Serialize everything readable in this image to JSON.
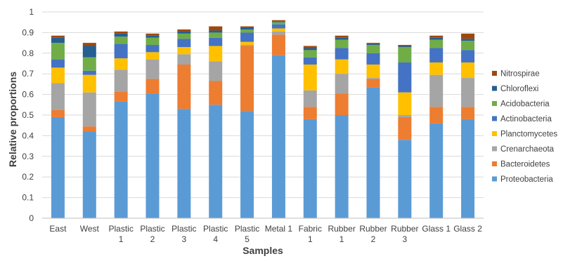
{
  "chart_data": {
    "type": "bar",
    "stacked": true,
    "xlabel": "Samples",
    "ylabel": "Relative proportions",
    "ylim": [
      0,
      1
    ],
    "yticks": [
      "0",
      "0.1",
      "0.2",
      "0.3",
      "0.4",
      "0.5",
      "0.6",
      "0.7",
      "0.8",
      "0.9",
      "1"
    ],
    "grid": true,
    "legend_position": "right",
    "categories": [
      [
        "East"
      ],
      [
        "West"
      ],
      [
        "Plastic",
        "1"
      ],
      [
        "Plastic",
        "2"
      ],
      [
        "Plastic",
        "3"
      ],
      [
        "Plastic",
        "4"
      ],
      [
        "Plastic",
        "5"
      ],
      [
        "Metal 1"
      ],
      [
        "Fabric",
        "1"
      ],
      [
        "Rubber",
        "1"
      ],
      [
        "Rubber",
        "2"
      ],
      [
        "Rubber",
        "3"
      ],
      [
        "Glass 1"
      ],
      [
        "Glass 2"
      ]
    ],
    "series": [
      {
        "name": "Proteobacteria",
        "color": "#5B9BD5",
        "values": [
          0.49,
          0.42,
          0.565,
          0.605,
          0.53,
          0.55,
          0.52,
          0.79,
          0.48,
          0.5,
          0.635,
          0.38,
          0.46,
          0.48
        ]
      },
      {
        "name": "Bacteroidetes",
        "color": "#ED7D31",
        "values": [
          0.035,
          0.025,
          0.05,
          0.07,
          0.215,
          0.115,
          0.315,
          0.1,
          0.06,
          0.105,
          0.04,
          0.11,
          0.08,
          0.06
        ]
      },
      {
        "name": "Crenarchaeota",
        "color": "#A5A5A5",
        "values": [
          0.13,
          0.165,
          0.105,
          0.095,
          0.05,
          0.095,
          0.005,
          0.015,
          0.08,
          0.095,
          0.005,
          0.01,
          0.155,
          0.14
        ]
      },
      {
        "name": "Planctomycetes",
        "color": "#FFC000",
        "values": [
          0.075,
          0.085,
          0.055,
          0.035,
          0.035,
          0.075,
          0.015,
          0.015,
          0.125,
          0.07,
          0.065,
          0.11,
          0.06,
          0.075
        ]
      },
      {
        "name": "Actinobacteria",
        "color": "#4472C4",
        "values": [
          0.04,
          0.02,
          0.07,
          0.035,
          0.04,
          0.04,
          0.045,
          0.02,
          0.035,
          0.055,
          0.055,
          0.145,
          0.07,
          0.06
        ]
      },
      {
        "name": "Acidobacteria",
        "color": "#70AD47",
        "values": [
          0.08,
          0.065,
          0.035,
          0.035,
          0.025,
          0.025,
          0.015,
          0.01,
          0.035,
          0.04,
          0.04,
          0.075,
          0.04,
          0.045
        ]
      },
      {
        "name": "Chloroflexi",
        "color": "#255E91",
        "values": [
          0.025,
          0.055,
          0.015,
          0.01,
          0.01,
          0.01,
          0.01,
          0.005,
          0.01,
          0.01,
          0.005,
          0.005,
          0.01,
          0.01
        ]
      },
      {
        "name": "Nitrospirae",
        "color": "#9E480E",
        "values": [
          0.01,
          0.015,
          0.01,
          0.01,
          0.01,
          0.02,
          0.005,
          0.005,
          0.01,
          0.01,
          0.005,
          0.005,
          0.01,
          0.025
        ]
      }
    ]
  }
}
